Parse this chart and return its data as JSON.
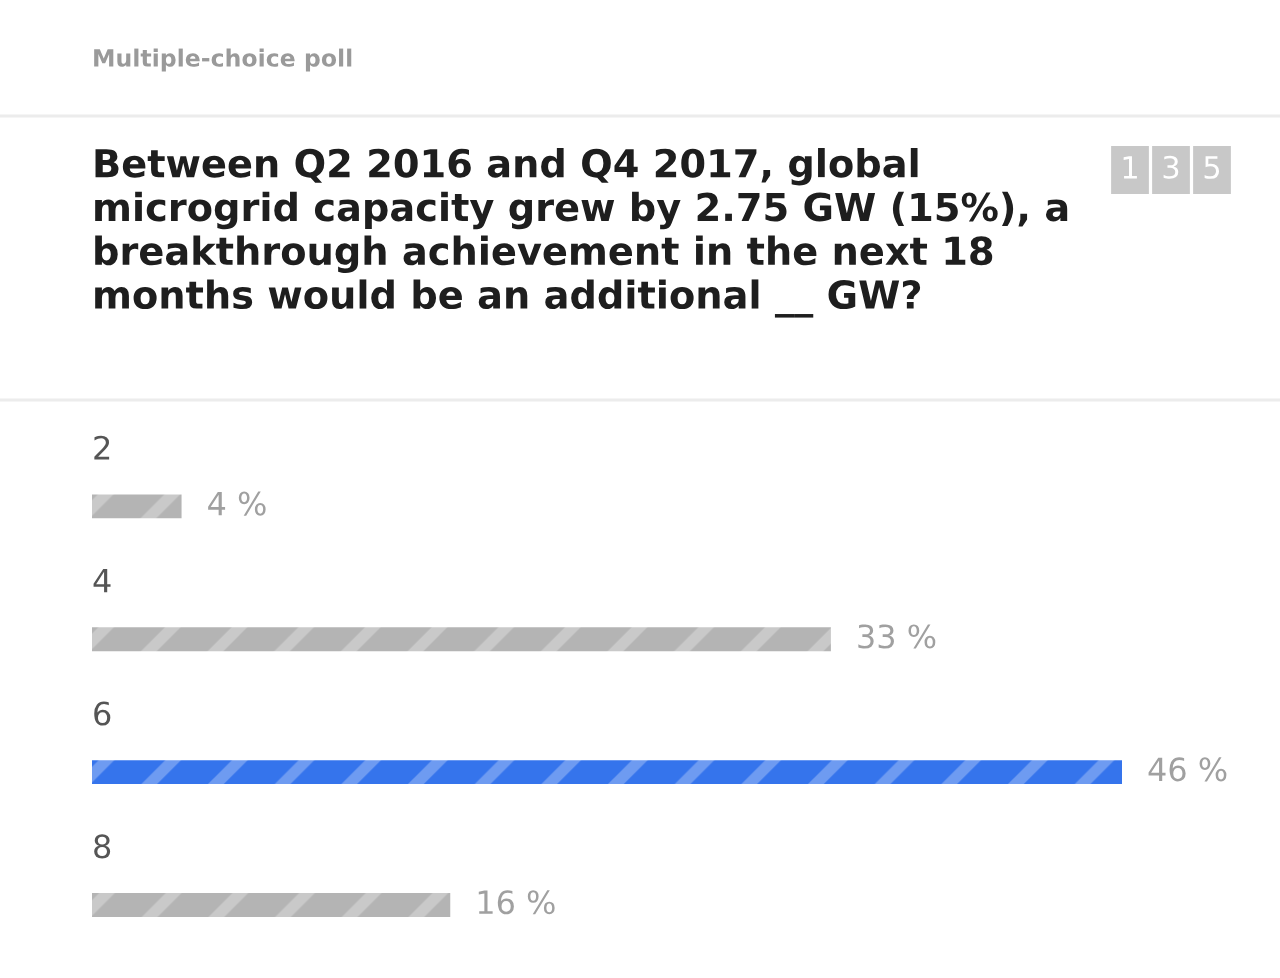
{
  "chart_data": {
    "type": "bar",
    "orientation": "horizontal",
    "title": "Between Q2 2016 and Q4 2017, global microgrid capacity grew by 2.75 GW (15%), a breakthrough achievement in the next 18 months would be an additional __ GW?",
    "categories": [
      "2",
      "4",
      "6",
      "8"
    ],
    "values": [
      4,
      33,
      46,
      16
    ],
    "colors": [
      "#b4b4b4",
      "#b4b4b4",
      "#3574ec",
      "#b4b4b4"
    ],
    "value_labels": [
      "4 %",
      "33 %",
      "46 %",
      "16 %"
    ],
    "annotations": [
      "Multiple-choice poll",
      "1",
      "3",
      "5"
    ]
  }
}
